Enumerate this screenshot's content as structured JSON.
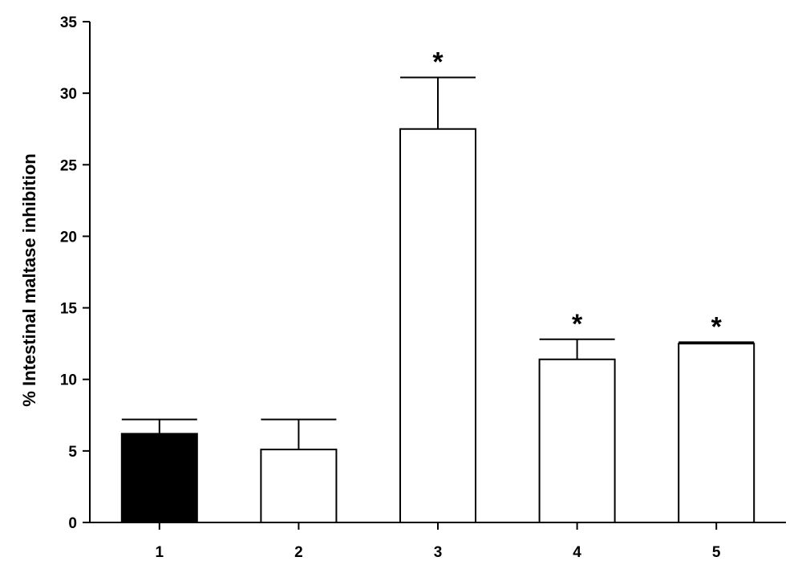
{
  "chart_data": {
    "type": "bar",
    "categories": [
      "1",
      "2",
      "3",
      "4",
      "5"
    ],
    "values": [
      6.2,
      5.1,
      27.5,
      11.4,
      12.5
    ],
    "errors": [
      1.0,
      2.1,
      3.6,
      1.4,
      0.1
    ],
    "significance": [
      "",
      "",
      "*",
      "*",
      "*"
    ],
    "fills": [
      "#000000",
      "#ffffff",
      "#ffffff",
      "#ffffff",
      "#ffffff"
    ],
    "title": "",
    "xlabel": "",
    "ylabel": "%  Intestinal maltase inhibition",
    "ylim": [
      0,
      35
    ],
    "yticks": [
      0,
      5,
      10,
      15,
      20,
      25,
      30,
      35
    ],
    "grid": false,
    "legend": "none"
  }
}
